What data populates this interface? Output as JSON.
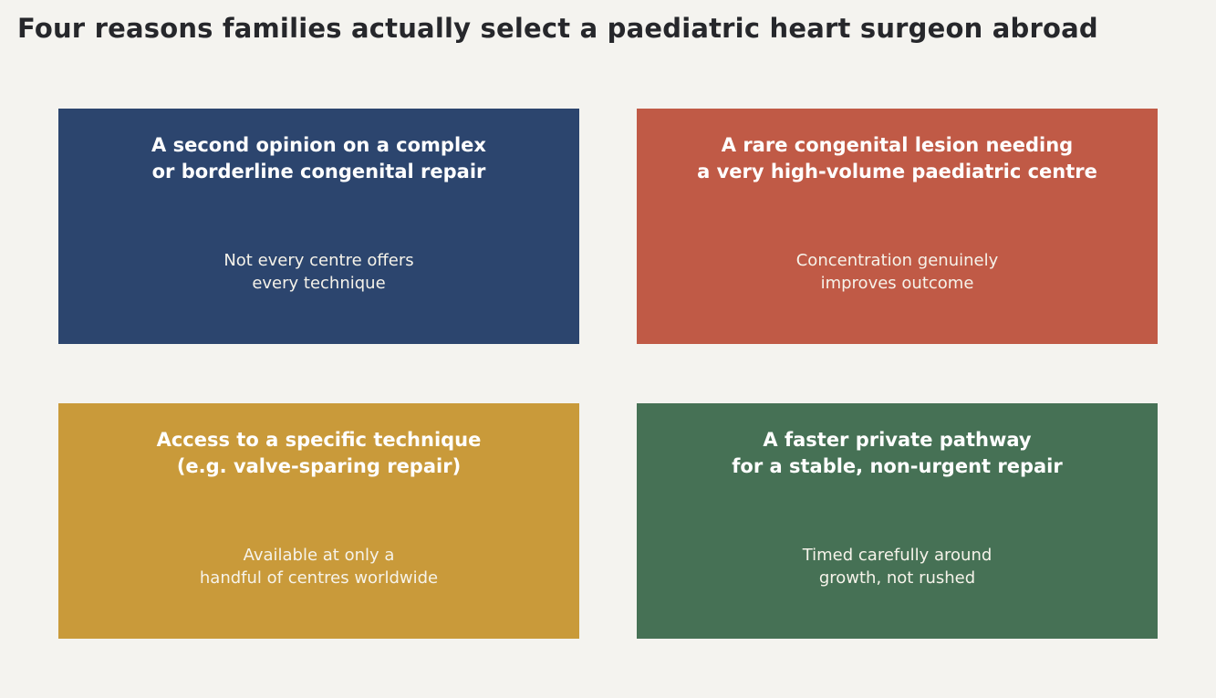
{
  "title": "Four reasons families actually select a paediatric heart surgeon abroad",
  "cards": [
    {
      "heading": "A second opinion on a complex\nor borderline congenital repair",
      "detail": "Not every centre offers\nevery technique",
      "color": "#2c456e"
    },
    {
      "heading": "A rare congenital lesion needing\na very high-volume paediatric centre",
      "detail": "Concentration genuinely\nimproves outcome",
      "color": "#c05a46"
    },
    {
      "heading": "Access to a specific technique\n(e.g. valve-sparing repair)",
      "detail": "Available at only a\nhandful of centres worldwide",
      "color": "#c99a3a"
    },
    {
      "heading": "A faster private pathway\nfor a stable, non-urgent repair",
      "detail": "Timed carefully around\ngrowth, not rushed",
      "color": "#467155"
    }
  ]
}
